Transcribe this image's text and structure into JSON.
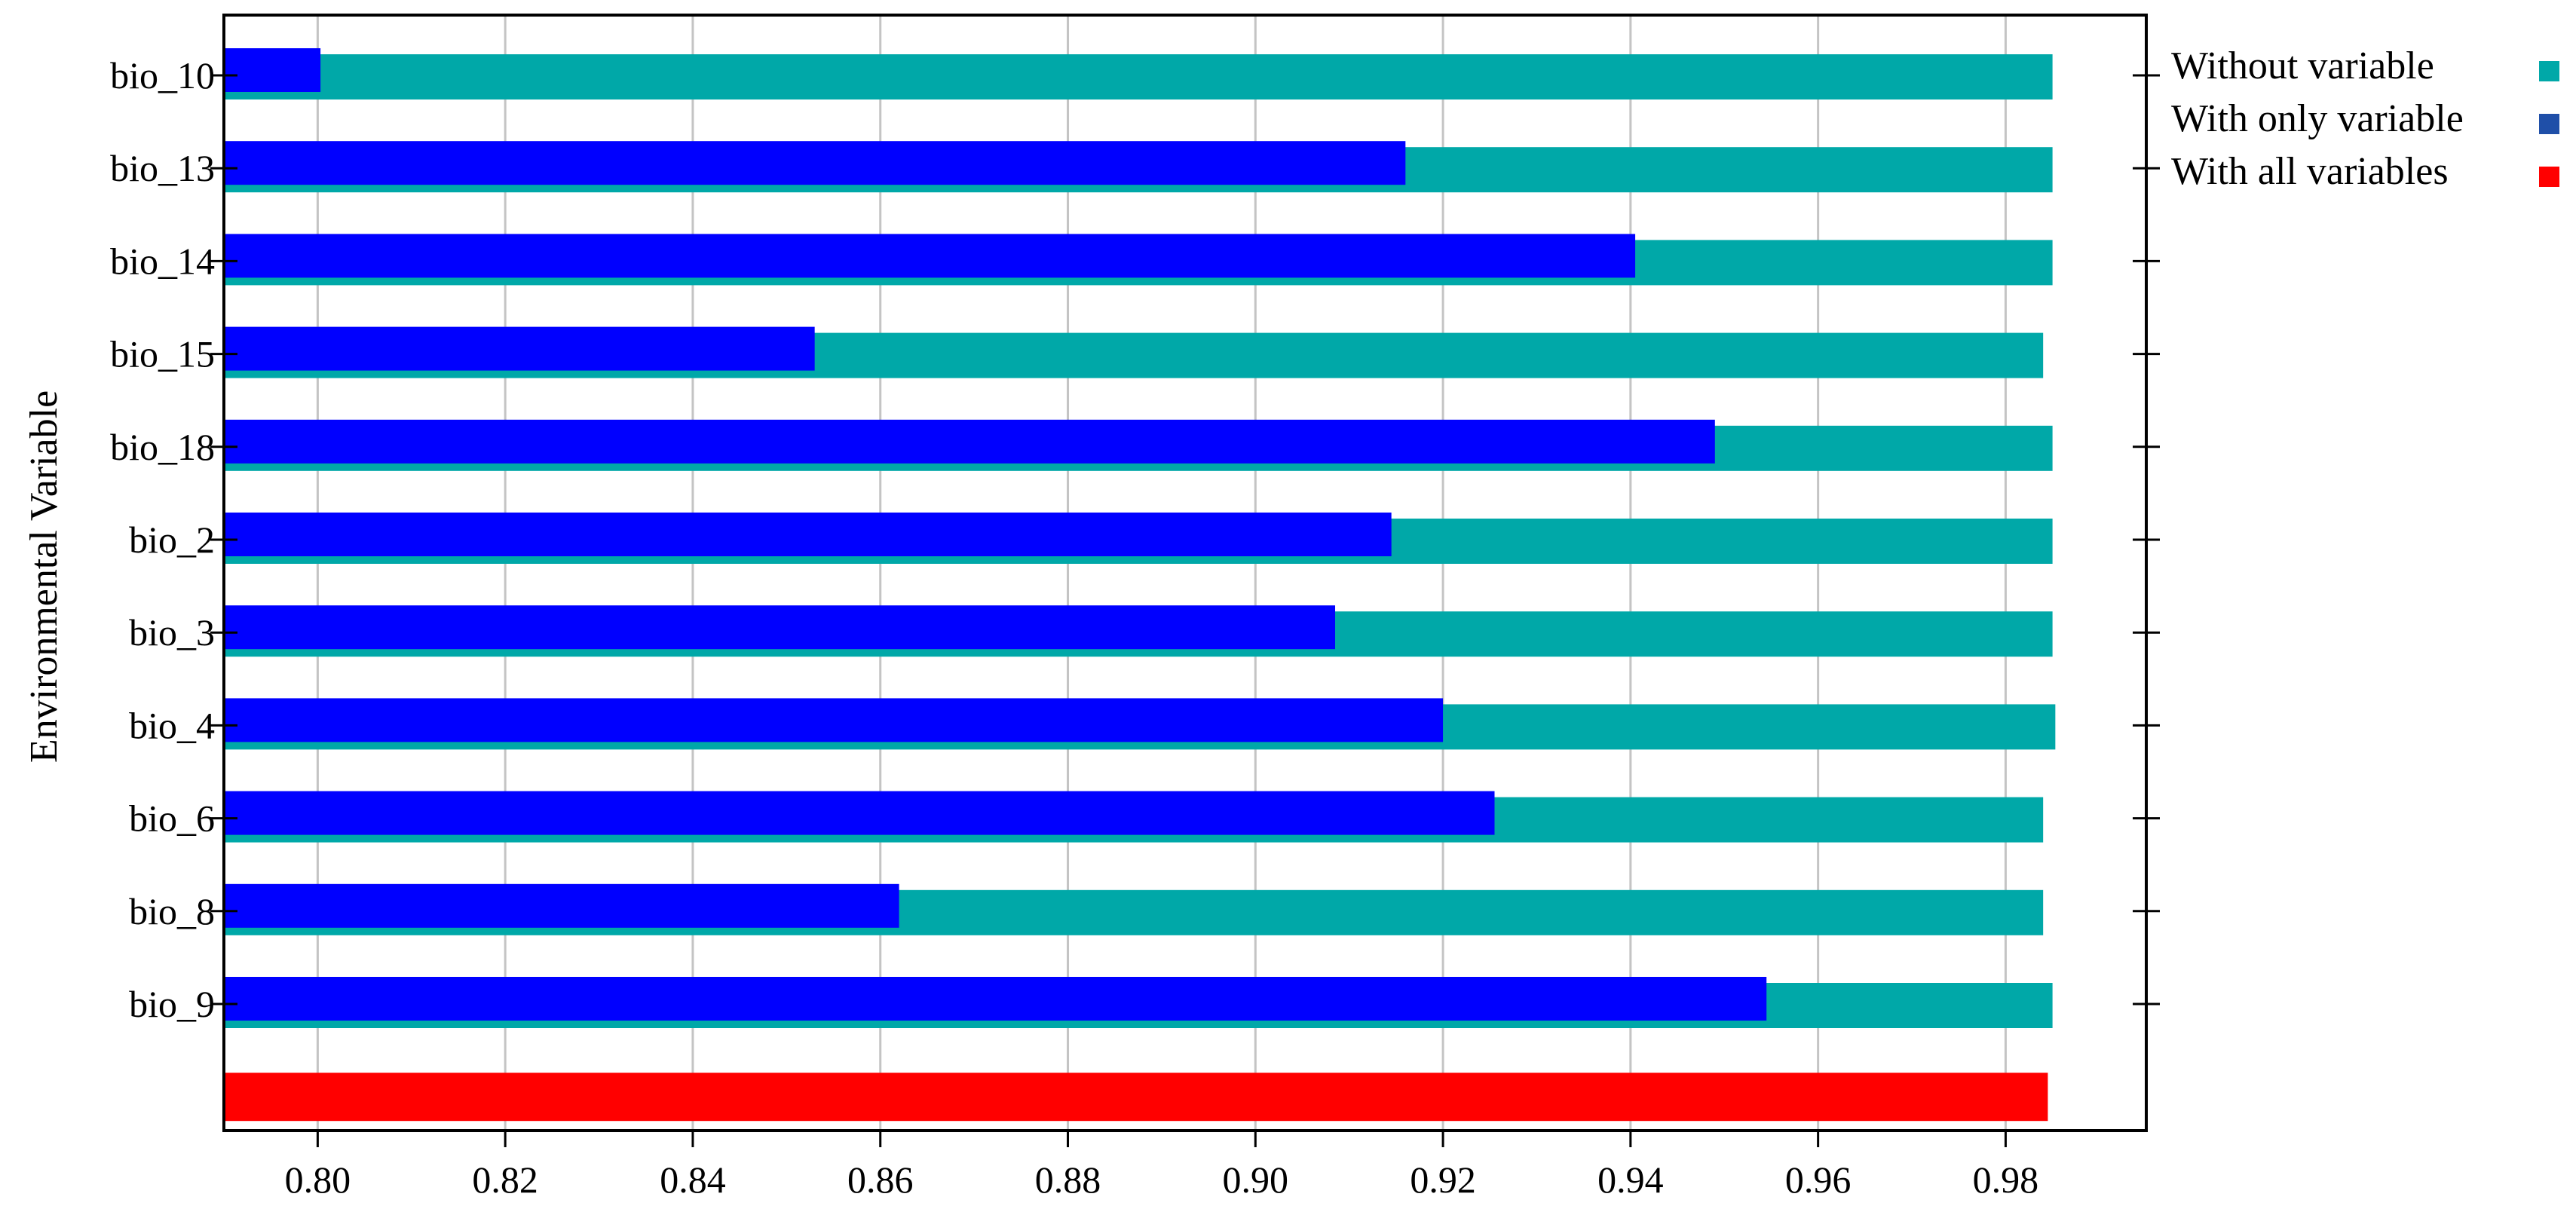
{
  "chart_data": {
    "type": "bar",
    "orientation": "horizontal",
    "title": "",
    "xlabel": "",
    "ylabel": "Environmental Variable",
    "xlim": [
      0.79,
      0.995
    ],
    "x_ticks": [
      "0.80",
      "0.82",
      "0.84",
      "0.86",
      "0.88",
      "0.90",
      "0.92",
      "0.94",
      "0.96",
      "0.98"
    ],
    "grid": "vertical",
    "legend_position": "right",
    "categories": [
      "bio_10",
      "bio_13",
      "bio_14",
      "bio_15",
      "bio_18",
      "bio_2",
      "bio_3",
      "bio_4",
      "bio_6",
      "bio_8",
      "bio_9",
      ""
    ],
    "series": [
      {
        "name": "Without variable",
        "color": "#00A8A8",
        "values": [
          0.985,
          0.985,
          0.985,
          0.984,
          0.985,
          0.985,
          0.985,
          0.9853,
          0.984,
          0.984,
          0.985,
          null
        ]
      },
      {
        "name": "With only variable",
        "color": "#0000FF",
        "legend_color": "#1F4FA8",
        "values": [
          0.8003,
          0.916,
          0.9405,
          0.853,
          0.949,
          0.9145,
          0.9085,
          0.92,
          0.9255,
          0.862,
          0.9545,
          null
        ]
      },
      {
        "name": "With all variables",
        "color": "#FF0000",
        "values": [
          null,
          null,
          null,
          null,
          null,
          null,
          null,
          null,
          null,
          null,
          null,
          0.9845
        ]
      }
    ]
  }
}
